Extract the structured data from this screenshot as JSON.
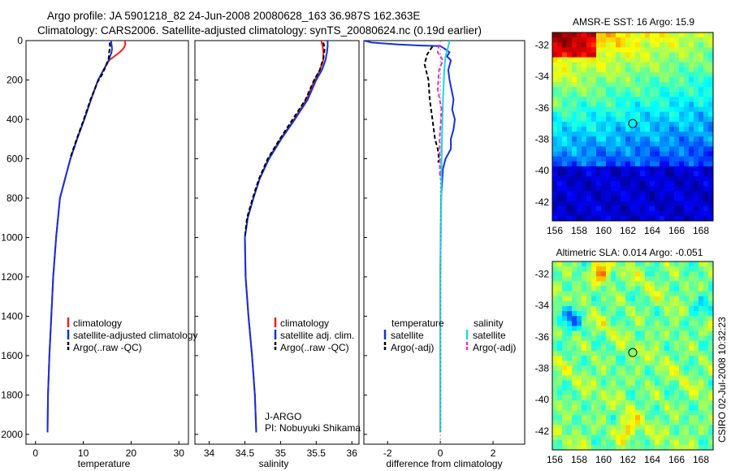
{
  "header": {
    "line1": "Argo profile: JA 5901218_82 24-Jun-2008 20080628_163 36.987S 162.363E",
    "line2": "Climatology: CARS2006. Satellite-adjusted climatology: synTS_20080624.nc (0.19d earlier)"
  },
  "side_label": "CSIRO 02-Jul-2008 10:32:23",
  "colors": {
    "climatology": "#e8231e",
    "satellite": "#1530d8",
    "argo": "#000000",
    "sal_satellite": "#28d2e6",
    "sal_argo": "#e632d2"
  },
  "chart_data": [
    {
      "type": "line",
      "name": "temperature-panel",
      "xlabel": "temperature",
      "ylabel": "",
      "xlim": [
        -2,
        32
      ],
      "ylim": [
        2050,
        0
      ],
      "xticks": [
        "0",
        "10",
        "20",
        "30"
      ],
      "yticks": [
        "0",
        "200",
        "400",
        "600",
        "800",
        "1000",
        "1200",
        "1400",
        "1600",
        "1800",
        "2000"
      ],
      "legend": [
        "climatology",
        "satellite-adjusted climatology",
        "Argo(..raw -QC)"
      ],
      "series": [
        {
          "name": "climatology",
          "x": [
            18.7,
            18.8,
            18.4,
            17.6,
            15.4,
            14.2,
            13.1,
            11.6,
            10.2,
            8.7,
            7.3,
            6.2,
            5.1,
            4.3,
            3.7,
            3.3,
            2.9,
            2.6,
            2.5
          ],
          "y": [
            0,
            20,
            40,
            60,
            100,
            150,
            200,
            300,
            400,
            500,
            600,
            700,
            800,
            1000,
            1200,
            1400,
            1600,
            1800,
            1990
          ]
        },
        {
          "name": "satellite-adjusted climatology",
          "x": [
            15.8,
            15.9,
            16.0,
            15.9,
            15.3,
            14.2,
            13.1,
            11.6,
            10.2,
            8.7,
            7.3,
            6.2,
            5.1,
            4.3,
            3.7,
            3.3,
            2.9,
            2.6,
            2.5
          ],
          "y": [
            0,
            20,
            40,
            60,
            100,
            150,
            200,
            300,
            400,
            500,
            600,
            700,
            800,
            1000,
            1200,
            1400,
            1600,
            1800,
            1990
          ]
        },
        {
          "name": "Argo(..raw -QC)",
          "x": [
            15.5,
            15.6,
            15.4,
            15.3,
            14.7,
            14.0,
            13.0,
            11.5,
            10.1,
            8.6,
            7.2
          ],
          "y": [
            10,
            30,
            60,
            90,
            130,
            170,
            210,
            300,
            400,
            500,
            600
          ]
        }
      ]
    },
    {
      "type": "line",
      "name": "salinity-panel",
      "xlabel": "salinity",
      "xlim": [
        33.8,
        36.1
      ],
      "ylim": [
        2050,
        0
      ],
      "xticks": [
        "34",
        "34.5",
        "35",
        "35.5",
        "36"
      ],
      "legend": [
        "climatology",
        "satellite adj. clim.",
        "Argo(..raw -QC)"
      ],
      "series": [
        {
          "name": "climatology",
          "x": [
            35.57,
            35.59,
            35.6,
            35.6,
            35.55,
            35.48,
            35.36,
            35.19,
            35.0,
            34.83,
            34.71,
            34.62,
            34.54,
            34.5,
            34.51,
            34.55,
            34.6,
            34.64,
            34.66
          ],
          "y": [
            0,
            30,
            60,
            100,
            150,
            200,
            300,
            400,
            500,
            600,
            700,
            800,
            900,
            1000,
            1200,
            1400,
            1600,
            1800,
            1990
          ]
        },
        {
          "name": "satellite adj. clim.",
          "x": [
            35.66,
            35.66,
            35.65,
            35.63,
            35.58,
            35.5,
            35.38,
            35.2,
            35.01,
            34.84,
            34.71,
            34.62,
            34.54,
            34.5,
            34.51,
            34.55,
            34.6,
            34.64,
            34.66
          ],
          "y": [
            0,
            30,
            60,
            100,
            150,
            200,
            300,
            400,
            500,
            600,
            700,
            800,
            900,
            1000,
            1200,
            1400,
            1600,
            1800,
            1990
          ]
        },
        {
          "name": "Argo(..raw -QC)",
          "x": [
            35.6,
            35.62,
            35.6,
            35.55,
            35.47,
            35.35,
            35.17,
            34.99,
            34.82,
            34.7,
            34.61,
            34.53,
            34.5
          ],
          "y": [
            10,
            40,
            90,
            150,
            200,
            300,
            400,
            500,
            600,
            700,
            800,
            900,
            1000
          ]
        }
      ]
    },
    {
      "type": "line",
      "name": "difference-panel",
      "xlabel": "difference from climatology",
      "xlim": [
        -2.9,
        3.2
      ],
      "ylim": [
        2050,
        0
      ],
      "xticks": [
        "-2",
        "0",
        "2"
      ],
      "legend": [
        "temperature",
        "satellite",
        "Argo(-adj)",
        "salinity",
        "satellite",
        "Argo(-adj)"
      ],
      "series": [
        {
          "name": "temperature satellite",
          "x": [
            -2.9,
            -2.6,
            -1.6,
            -0.7,
            0.0,
            0.15,
            0.35,
            0.25,
            0.4,
            0.3,
            0.35,
            0.5,
            0.45,
            0.55,
            0.5,
            0.4,
            0.4,
            0.2,
            0.1,
            0.03,
            0.0,
            0.0
          ],
          "y": [
            0,
            10,
            20,
            25,
            28,
            40,
            60,
            80,
            100,
            150,
            200,
            300,
            350,
            400,
            450,
            500,
            550,
            600,
            650,
            800,
            1200,
            1990
          ]
        },
        {
          "name": "temperature Argo(-adj)",
          "x": [
            -0.3,
            -0.5,
            -0.6,
            -0.45,
            -0.4,
            -0.3,
            -0.25,
            -0.2,
            -0.1,
            -0.05,
            -0.08
          ],
          "y": [
            30,
            70,
            120,
            200,
            300,
            400,
            450,
            500,
            550,
            600,
            620
          ]
        },
        {
          "name": "salinity satellite",
          "x": [
            0.35,
            0.3,
            0.2,
            0.15,
            0.1,
            0.06,
            0.04,
            0.03,
            0.0,
            0.0
          ],
          "y": [
            0,
            30,
            80,
            150,
            300,
            500,
            700,
            900,
            1200,
            1990
          ]
        },
        {
          "name": "salinity Argo(-adj)",
          "x": [
            -0.05,
            -0.1,
            0.1,
            -0.05,
            -0.1,
            0.05,
            -0.03,
            -0.02,
            -0.02
          ],
          "y": [
            20,
            60,
            100,
            150,
            250,
            350,
            500,
            600,
            700
          ]
        }
      ]
    },
    {
      "type": "heatmap",
      "name": "sst-map",
      "title": "AMSR-E SST: 16 Argo: 15.9",
      "xlim": [
        155.8,
        169
      ],
      "ylim": [
        -43.2,
        -31.2
      ],
      "xticks": [
        "156",
        "158",
        "160",
        "162",
        "164",
        "166",
        "168"
      ],
      "yticks": [
        "-32",
        "-34",
        "-36",
        "-38",
        "-40",
        "-42"
      ],
      "marker": {
        "lon": 162.4,
        "lat": -37
      }
    },
    {
      "type": "heatmap",
      "name": "sla-map",
      "title": "Altimetric SLA: 0.014 Argo: -0.051",
      "xlim": [
        155.8,
        169
      ],
      "ylim": [
        -43.2,
        -31.2
      ],
      "xticks": [
        "156",
        "158",
        "160",
        "162",
        "164",
        "166",
        "168"
      ],
      "yticks": [
        "-32",
        "-34",
        "-36",
        "-38",
        "-40",
        "-42"
      ],
      "marker": {
        "lon": 162.4,
        "lat": -37
      }
    }
  ],
  "annotation": {
    "line1": "J-ARGO",
    "line2": "PI: Nobuyuki Shikama"
  }
}
